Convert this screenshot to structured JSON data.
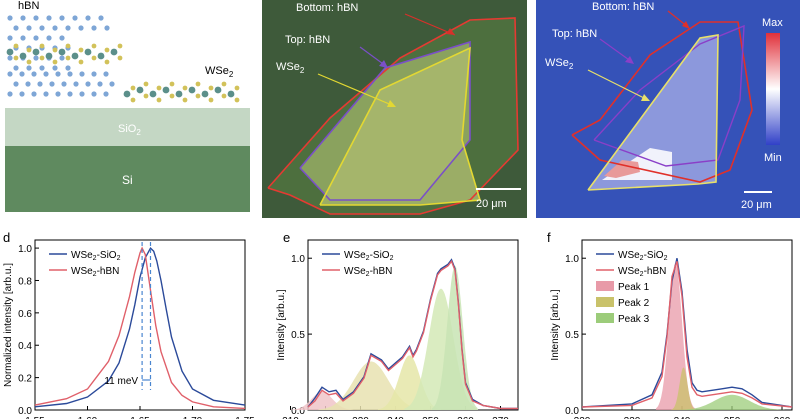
{
  "panel_a": {
    "labels": {
      "top": "hBN",
      "wse2": "WSe",
      "wse2_sub": "2",
      "sio2": "SiO",
      "sio2_sub": "2",
      "si": "Si"
    }
  },
  "panel_b": {
    "labels": {
      "bottom": "Bottom: hBN",
      "top": "Top: hBN",
      "wse2": "WSe",
      "wse2_sub": "2"
    },
    "scale_bar": "20 μm"
  },
  "panel_c": {
    "labels": {
      "bottom": "Bottom: hBN",
      "top": "Top: hBN",
      "wse2": "WSe",
      "wse2_sub": "2"
    },
    "colorbar": {
      "max": "Max",
      "min": "Min"
    },
    "scale_bar": "20 μm"
  },
  "panel_labels": {
    "d": "d",
    "e": "e",
    "f": "f"
  },
  "chart_data": [
    {
      "panel": "d",
      "type": "line",
      "xlabel": "",
      "ylabel": "Normalized intensity [arb.u.]",
      "xlim": [
        1.55,
        1.75
      ],
      "ylim": [
        0.0,
        1.05
      ],
      "x_ticks": [
        "1.55",
        "1.60",
        "1.65",
        "1.70",
        "1.75"
      ],
      "y_ticks": [
        "0.0",
        "0.2",
        "0.4",
        "0.6",
        "0.8",
        "1.0"
      ],
      "annotation": "11 meV",
      "series": [
        {
          "name": "WSe2-SiO2",
          "label": "WSe",
          "sub": "2",
          "suffix": "-SiO",
          "sub2": "2",
          "color": "#2b4a9a",
          "x": [
            1.55,
            1.58,
            1.6,
            1.62,
            1.63,
            1.64,
            1.645,
            1.65,
            1.655,
            1.66,
            1.663,
            1.666,
            1.67,
            1.675,
            1.68,
            1.69,
            1.7,
            1.72,
            1.75
          ],
          "y": [
            0.02,
            0.04,
            0.08,
            0.18,
            0.29,
            0.5,
            0.65,
            0.82,
            0.94,
            1.0,
            0.98,
            0.92,
            0.8,
            0.62,
            0.45,
            0.24,
            0.13,
            0.06,
            0.03
          ]
        },
        {
          "name": "WSe2-hBN",
          "label": "WSe",
          "sub": "2",
          "suffix": "-hBN",
          "sub2": "",
          "color": "#e0606a",
          "x": [
            1.55,
            1.58,
            1.6,
            1.62,
            1.63,
            1.64,
            1.645,
            1.65,
            1.652,
            1.655,
            1.66,
            1.665,
            1.67,
            1.68,
            1.69,
            1.7,
            1.72,
            1.75
          ],
          "y": [
            0.03,
            0.07,
            0.13,
            0.3,
            0.46,
            0.7,
            0.85,
            0.97,
            1.0,
            0.96,
            0.74,
            0.52,
            0.36,
            0.17,
            0.09,
            0.05,
            0.02,
            0.01
          ]
        }
      ]
    },
    {
      "panel": "e",
      "type": "line",
      "xlabel": "",
      "ylabel": "Intensity [arb.u.]",
      "xlim": [
        215,
        275
      ],
      "ylim": [
        0.0,
        1.12
      ],
      "x_ticks": [
        "210",
        "220",
        "230",
        "240",
        "250",
        "260",
        "270"
      ],
      "y_ticks": [
        "0.0",
        "0.5",
        "1.0"
      ],
      "series": [
        {
          "name": "WSe2-SiO2",
          "label": "WSe",
          "sub": "2",
          "suffix": "-SiO",
          "sub2": "2",
          "color": "#2b4a9a",
          "x": [
            215,
            217,
            219,
            221,
            223,
            225,
            228,
            231,
            233,
            236,
            238,
            240,
            242,
            244,
            245,
            246,
            248,
            250,
            252,
            253,
            255,
            256,
            257,
            258,
            259,
            260,
            262,
            265,
            270,
            275
          ],
          "y": [
            0.02,
            0.08,
            0.15,
            0.12,
            0.13,
            0.07,
            0.12,
            0.22,
            0.37,
            0.33,
            0.27,
            0.31,
            0.35,
            0.42,
            0.36,
            0.4,
            0.52,
            0.73,
            0.9,
            0.93,
            0.96,
            0.99,
            0.93,
            0.7,
            0.4,
            0.18,
            0.07,
            0.03,
            0.01,
            0.01
          ]
        },
        {
          "name": "WSe2-hBN",
          "label": "WSe",
          "sub": "2",
          "suffix": "-hBN",
          "sub2": "",
          "color": "#e0606a",
          "x": [
            215,
            217,
            219,
            221,
            223,
            225,
            228,
            231,
            233,
            236,
            238,
            240,
            242,
            244,
            245,
            246,
            248,
            250,
            252,
            253,
            255,
            256,
            257,
            258,
            259,
            260,
            262,
            265,
            270,
            275
          ],
          "y": [
            0.02,
            0.06,
            0.13,
            0.1,
            0.11,
            0.06,
            0.11,
            0.21,
            0.36,
            0.32,
            0.26,
            0.3,
            0.34,
            0.41,
            0.35,
            0.39,
            0.51,
            0.72,
            0.89,
            0.92,
            0.95,
            0.98,
            0.92,
            0.69,
            0.39,
            0.17,
            0.06,
            0.03,
            0.01,
            0.01
          ]
        }
      ],
      "fill_peaks": [
        {
          "center": 219,
          "height": 0.12,
          "width": 3
        },
        {
          "center": 233,
          "height": 0.32,
          "width": 5
        },
        {
          "center": 244,
          "height": 0.36,
          "width": 3
        },
        {
          "center": 253,
          "height": 0.8,
          "width": 3.5
        },
        {
          "center": 257,
          "height": 0.95,
          "width": 2.2
        }
      ]
    },
    {
      "panel": "f",
      "type": "line",
      "xlabel": "",
      "ylabel": "Intensity [arb.u.]",
      "xlim": [
        220,
        262
      ],
      "ylim": [
        0.0,
        1.12
      ],
      "x_ticks": [
        "220",
        "230",
        "240",
        "250",
        "260"
      ],
      "y_ticks": [
        "0.0",
        "0.5",
        "1.0"
      ],
      "series": [
        {
          "name": "WSe2-SiO2",
          "label": "WSe",
          "sub": "2",
          "suffix": "-SiO",
          "sub2": "2",
          "color": "#2b4a9a",
          "x": [
            220,
            230,
            234,
            236,
            237,
            238,
            239,
            240,
            241,
            242,
            243,
            244,
            246,
            248,
            250,
            252,
            254,
            256,
            262
          ],
          "y": [
            0.02,
            0.04,
            0.1,
            0.25,
            0.5,
            0.85,
            1.0,
            0.78,
            0.4,
            0.18,
            0.13,
            0.12,
            0.13,
            0.14,
            0.15,
            0.14,
            0.1,
            0.05,
            0.02
          ]
        },
        {
          "name": "WSe2-hBN",
          "label": "WSe",
          "sub": "2",
          "suffix": "-hBN",
          "sub2": "",
          "color": "#e0606a",
          "x": [
            220,
            230,
            234,
            236,
            237,
            238,
            239,
            240,
            241,
            242,
            243,
            244,
            246,
            248,
            250,
            252,
            254,
            256,
            262
          ],
          "y": [
            0.02,
            0.03,
            0.08,
            0.22,
            0.48,
            0.88,
            0.98,
            0.75,
            0.35,
            0.15,
            0.1,
            0.09,
            0.1,
            0.11,
            0.12,
            0.11,
            0.08,
            0.04,
            0.02
          ]
        }
      ],
      "peaks": [
        {
          "name": "Peak 1",
          "color": "#e89aa8",
          "center": 238.7,
          "height": 0.97,
          "width": 1.3
        },
        {
          "name": "Peak 2",
          "color": "#c9c26a",
          "center": 240.3,
          "height": 0.28,
          "width": 0.8
        },
        {
          "name": "Peak 3",
          "color": "#9ccc7a",
          "center": 250.0,
          "height": 0.1,
          "width": 3.5
        }
      ]
    }
  ]
}
